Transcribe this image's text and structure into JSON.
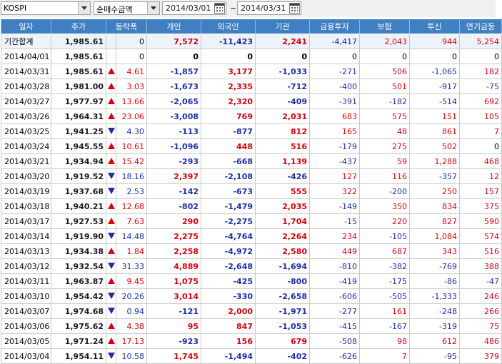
{
  "toolbar": {
    "market": "KOSPI",
    "metric": "순매수금액",
    "date_from": "2014/03/01",
    "date_to": "2014/03/31",
    "separator": "~"
  },
  "columns": [
    "일자",
    "주가",
    "등락폭",
    "개인",
    "외국인",
    "기관",
    "금융투자",
    "보험",
    "투신",
    "연기금등"
  ],
  "colors": {
    "header_bg": "#3f7fc2",
    "up": "#d8000c",
    "down": "#1a2fa8"
  },
  "rows": [
    {
      "date": "기간합계",
      "price": "1,985.61",
      "dir": "",
      "chg": "0",
      "indiv": "7,572",
      "foreign": "-11,423",
      "inst": "2,241",
      "fin": "-4,417",
      "ins": "2,043",
      "trust": "944",
      "pension": "5,254",
      "total": true
    },
    {
      "date": "2014/04/01",
      "price": "1,985.61",
      "dir": "",
      "chg": "0",
      "indiv": "0",
      "foreign": "0",
      "inst": "0",
      "fin": "0",
      "ins": "0",
      "trust": "0",
      "pension": "0"
    },
    {
      "date": "2014/03/31",
      "price": "1,985.61",
      "dir": "up",
      "chg": "4.61",
      "indiv": "-1,857",
      "foreign": "3,177",
      "inst": "-1,033",
      "fin": "-271",
      "ins": "506",
      "trust": "-1,065",
      "pension": "182"
    },
    {
      "date": "2014/03/28",
      "price": "1,981.00",
      "dir": "up",
      "chg": "3.03",
      "indiv": "-1,673",
      "foreign": "2,335",
      "inst": "-712",
      "fin": "-400",
      "ins": "501",
      "trust": "-917",
      "pension": "-75"
    },
    {
      "date": "2014/03/27",
      "price": "1,977.97",
      "dir": "up",
      "chg": "13.66",
      "indiv": "-2,065",
      "foreign": "2,320",
      "inst": "-409",
      "fin": "-391",
      "ins": "-182",
      "trust": "-514",
      "pension": "692"
    },
    {
      "date": "2014/03/26",
      "price": "1,964.31",
      "dir": "up",
      "chg": "23.06",
      "indiv": "-3,008",
      "foreign": "769",
      "inst": "2,031",
      "fin": "683",
      "ins": "575",
      "trust": "151",
      "pension": "105"
    },
    {
      "date": "2014/03/25",
      "price": "1,941.25",
      "dir": "down",
      "chg": "4.30",
      "indiv": "-113",
      "foreign": "-877",
      "inst": "812",
      "fin": "165",
      "ins": "48",
      "trust": "861",
      "pension": "7"
    },
    {
      "date": "2014/03/24",
      "price": "1,945.55",
      "dir": "up",
      "chg": "10.61",
      "indiv": "-1,096",
      "foreign": "448",
      "inst": "516",
      "fin": "-179",
      "ins": "275",
      "trust": "502",
      "pension": "0"
    },
    {
      "date": "2014/03/21",
      "price": "1,934.94",
      "dir": "up",
      "chg": "15.42",
      "indiv": "-293",
      "foreign": "-668",
      "inst": "1,139",
      "fin": "-437",
      "ins": "59",
      "trust": "1,288",
      "pension": "468"
    },
    {
      "date": "2014/03/20",
      "price": "1,919.52",
      "dir": "down",
      "chg": "18.16",
      "indiv": "2,397",
      "foreign": "-2,108",
      "inst": "-426",
      "fin": "127",
      "ins": "116",
      "trust": "-357",
      "pension": "12"
    },
    {
      "date": "2014/03/19",
      "price": "1,937.68",
      "dir": "down",
      "chg": "2.53",
      "indiv": "-142",
      "foreign": "-673",
      "inst": "555",
      "fin": "322",
      "ins": "-200",
      "trust": "250",
      "pension": "157"
    },
    {
      "date": "2014/03/18",
      "price": "1,940.21",
      "dir": "up",
      "chg": "12.68",
      "indiv": "-802",
      "foreign": "-1,479",
      "inst": "2,035",
      "fin": "-149",
      "ins": "350",
      "trust": "834",
      "pension": "375"
    },
    {
      "date": "2014/03/17",
      "price": "1,927.53",
      "dir": "up",
      "chg": "7.63",
      "indiv": "290",
      "foreign": "-2,275",
      "inst": "1,704",
      "fin": "-15",
      "ins": "220",
      "trust": "827",
      "pension": "590"
    },
    {
      "date": "2014/03/14",
      "price": "1,919.90",
      "dir": "down",
      "chg": "14.48",
      "indiv": "2,275",
      "foreign": "-4,764",
      "inst": "2,264",
      "fin": "234",
      "ins": "-105",
      "trust": "1,084",
      "pension": "574"
    },
    {
      "date": "2014/03/13",
      "price": "1,934.38",
      "dir": "up",
      "chg": "1.84",
      "indiv": "2,258",
      "foreign": "-4,972",
      "inst": "2,580",
      "fin": "449",
      "ins": "687",
      "trust": "343",
      "pension": "516"
    },
    {
      "date": "2014/03/12",
      "price": "1,932.54",
      "dir": "down",
      "chg": "31.33",
      "indiv": "4,889",
      "foreign": "-2,648",
      "inst": "-1,694",
      "fin": "-810",
      "ins": "-382",
      "trust": "-769",
      "pension": "388"
    },
    {
      "date": "2014/03/11",
      "price": "1,963.87",
      "dir": "up",
      "chg": "9.45",
      "indiv": "1,075",
      "foreign": "-425",
      "inst": "-800",
      "fin": "-419",
      "ins": "-175",
      "trust": "-86",
      "pension": "-47"
    },
    {
      "date": "2014/03/10",
      "price": "1,954.42",
      "dir": "down",
      "chg": "20.26",
      "indiv": "3,014",
      "foreign": "-330",
      "inst": "-2,658",
      "fin": "-606",
      "ins": "-505",
      "trust": "-1,333",
      "pension": "246"
    },
    {
      "date": "2014/03/07",
      "price": "1,974.68",
      "dir": "down",
      "chg": "0.94",
      "indiv": "-121",
      "foreign": "2,000",
      "inst": "-1,971",
      "fin": "-277",
      "ins": "161",
      "trust": "-248",
      "pension": "266"
    },
    {
      "date": "2014/03/06",
      "price": "1,975.62",
      "dir": "up",
      "chg": "4.38",
      "indiv": "95",
      "foreign": "847",
      "inst": "-1,053",
      "fin": "-415",
      "ins": "-167",
      "trust": "-319",
      "pension": "75"
    },
    {
      "date": "2014/03/05",
      "price": "1,971.24",
      "dir": "up",
      "chg": "17.13",
      "indiv": "-923",
      "foreign": "156",
      "inst": "679",
      "fin": "-508",
      "ins": "98",
      "trust": "612",
      "pension": "486"
    },
    {
      "date": "2014/03/04",
      "price": "1,954.11",
      "dir": "down",
      "chg": "10.58",
      "indiv": "1,745",
      "foreign": "-1,494",
      "inst": "-402",
      "fin": "-626",
      "ins": "7",
      "trust": "-95",
      "pension": "379"
    }
  ]
}
